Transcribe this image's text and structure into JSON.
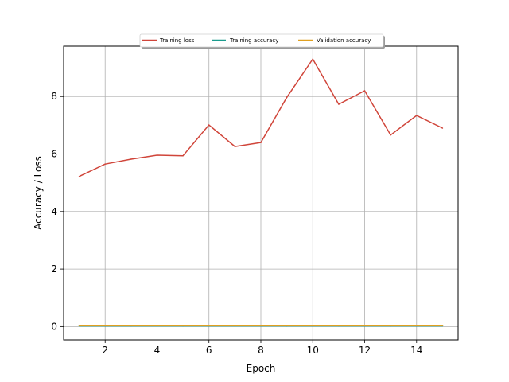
{
  "chart_data": {
    "type": "line",
    "title": "",
    "xlabel": "Epoch",
    "ylabel": "Accuracy / Loss",
    "xlim": [
      0.4,
      15.6
    ],
    "ylim": [
      -0.46,
      9.75
    ],
    "xticks": [
      2,
      4,
      6,
      8,
      10,
      12,
      14
    ],
    "yticks": [
      0,
      2,
      4,
      6,
      8
    ],
    "grid": true,
    "legend_position": "top-center",
    "x": [
      1,
      2,
      3,
      4,
      5,
      6,
      7,
      8,
      9,
      10,
      11,
      12,
      13,
      14,
      15
    ],
    "series": [
      {
        "name": "Training loss",
        "color": "#d0453a",
        "values": [
          5.22,
          5.65,
          5.82,
          5.96,
          5.94,
          7.01,
          6.26,
          6.4,
          7.97,
          9.3,
          7.73,
          8.2,
          6.66,
          7.34,
          6.9
        ]
      },
      {
        "name": "Training accuracy",
        "color": "#1a9c8e",
        "values": [
          0.02,
          0.02,
          0.02,
          0.02,
          0.02,
          0.02,
          0.02,
          0.02,
          0.02,
          0.02,
          0.02,
          0.02,
          0.02,
          0.02,
          0.02
        ]
      },
      {
        "name": "Validation accuracy",
        "color": "#e0a020",
        "values": [
          0.03,
          0.03,
          0.03,
          0.03,
          0.03,
          0.03,
          0.03,
          0.03,
          0.03,
          0.03,
          0.03,
          0.03,
          0.03,
          0.03,
          0.03
        ]
      }
    ]
  }
}
